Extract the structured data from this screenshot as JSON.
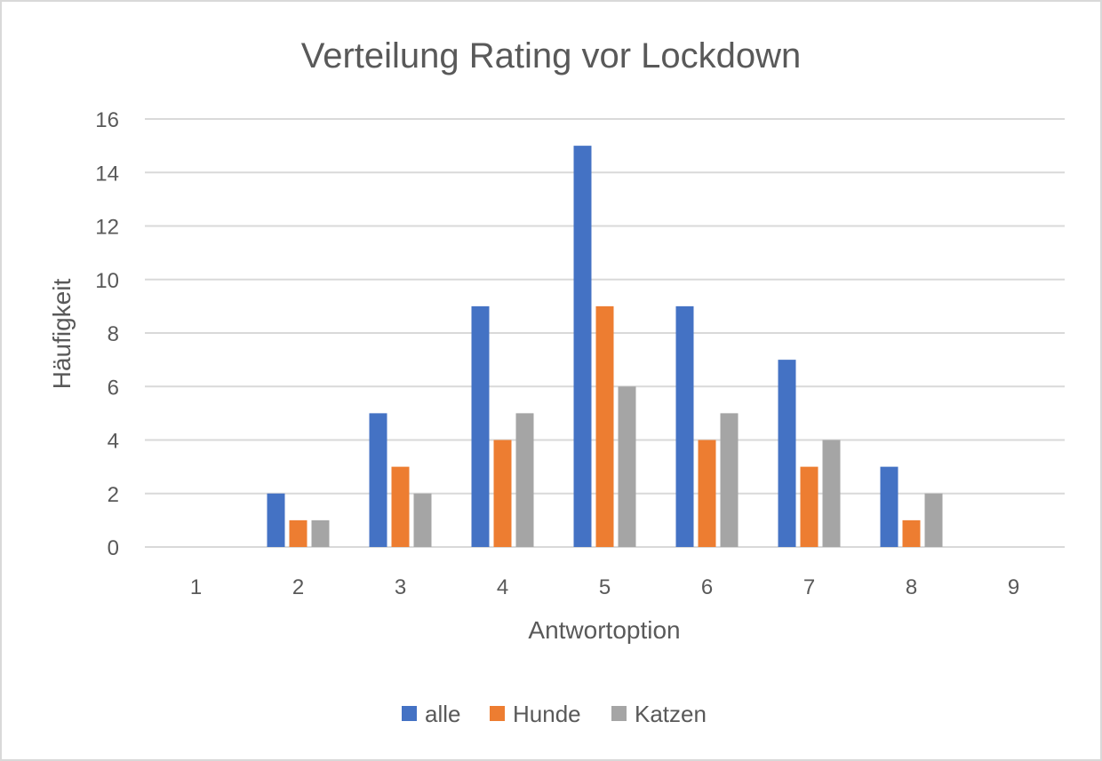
{
  "chart_data": {
    "type": "bar",
    "title": "Verteilung Rating vor Lockdown",
    "xlabel": "Antwortoption",
    "ylabel": "Häufigkeit",
    "categories": [
      "1",
      "2",
      "3",
      "4",
      "5",
      "6",
      "7",
      "8",
      "9"
    ],
    "ylim": [
      0,
      16
    ],
    "yticks": [
      "0",
      "2",
      "4",
      "6",
      "8",
      "10",
      "12",
      "14",
      "16"
    ],
    "grid": true,
    "legend": "bottom",
    "series": [
      {
        "name": "alle",
        "color": "#4472c4",
        "values": [
          0,
          2,
          5,
          9,
          15,
          9,
          7,
          3,
          0
        ]
      },
      {
        "name": "Hunde",
        "color": "#ed7d31",
        "values": [
          0,
          1,
          3,
          4,
          9,
          4,
          3,
          1,
          0
        ]
      },
      {
        "name": "Katzen",
        "color": "#a5a5a5",
        "values": [
          0,
          1,
          2,
          5,
          6,
          5,
          4,
          2,
          0
        ]
      }
    ]
  }
}
